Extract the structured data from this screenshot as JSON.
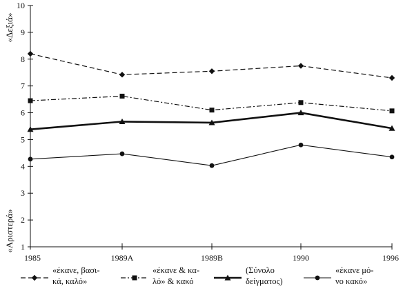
{
  "chart_data": {
    "type": "line",
    "categories": [
      "1985",
      "1989A",
      "1989B",
      "1990",
      "1996"
    ],
    "ylim": [
      1,
      10
    ],
    "yticks": [
      1,
      2,
      3,
      4,
      5,
      6,
      7,
      8,
      9,
      10
    ],
    "y_label_top": "«Δεξιά»",
    "y_label_bottom": "«Αριστερά»",
    "grid": false,
    "legend_position": "bottom",
    "series": [
      {
        "name_lines": [
          "«έκανε, βασι-",
          "κά, καλό»"
        ],
        "values": [
          8.2,
          7.42,
          7.55,
          7.75,
          7.3
        ],
        "marker": "diamond",
        "dash": "dashed",
        "width": 1.2
      },
      {
        "name_lines": [
          "«έκανε & κα-",
          "λό» & κακό"
        ],
        "values": [
          6.45,
          6.62,
          6.1,
          6.38,
          6.07
        ],
        "marker": "square",
        "dash": "dashdot",
        "width": 1.2
      },
      {
        "name_lines": [
          "(Σύνολο",
          "δείγματος)"
        ],
        "values": [
          5.38,
          5.67,
          5.63,
          6.0,
          5.42
        ],
        "marker": "triangle",
        "dash": "solid",
        "width": 2.6
      },
      {
        "name_lines": [
          "«έκανε μό-",
          "νο κακό»"
        ],
        "values": [
          4.27,
          4.47,
          4.03,
          4.8,
          4.35
        ],
        "marker": "circle",
        "dash": "solid",
        "width": 1.1
      }
    ]
  }
}
